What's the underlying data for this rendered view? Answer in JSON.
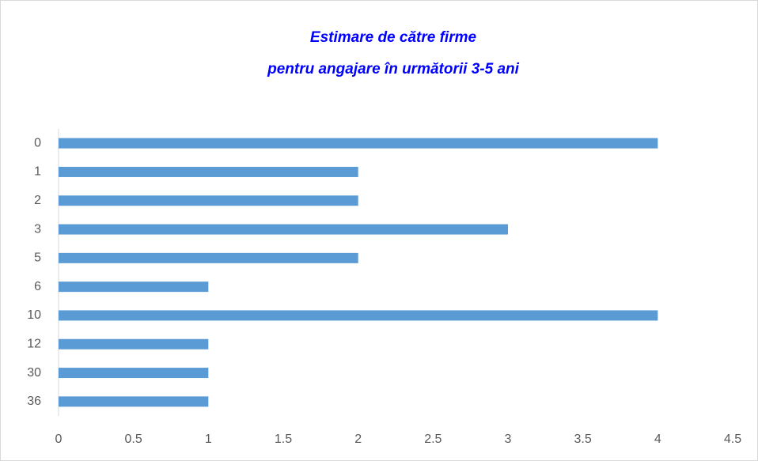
{
  "chart_data": {
    "type": "bar",
    "orientation": "horizontal",
    "title": [
      "Estimare de către firme",
      "pentru angajare în următorii 3-5 ani"
    ],
    "categories": [
      "0",
      "1",
      "2",
      "3",
      "5",
      "6",
      "10",
      "12",
      "30",
      "36"
    ],
    "values": [
      4,
      2,
      2,
      3,
      2,
      1,
      4,
      1,
      1,
      1
    ],
    "color": "#5b9bd5",
    "xlim": [
      0,
      4.5
    ],
    "xticks": [
      0,
      0.5,
      1,
      1.5,
      2,
      2.5,
      3,
      3.5,
      4,
      4.5
    ],
    "grid": false
  }
}
